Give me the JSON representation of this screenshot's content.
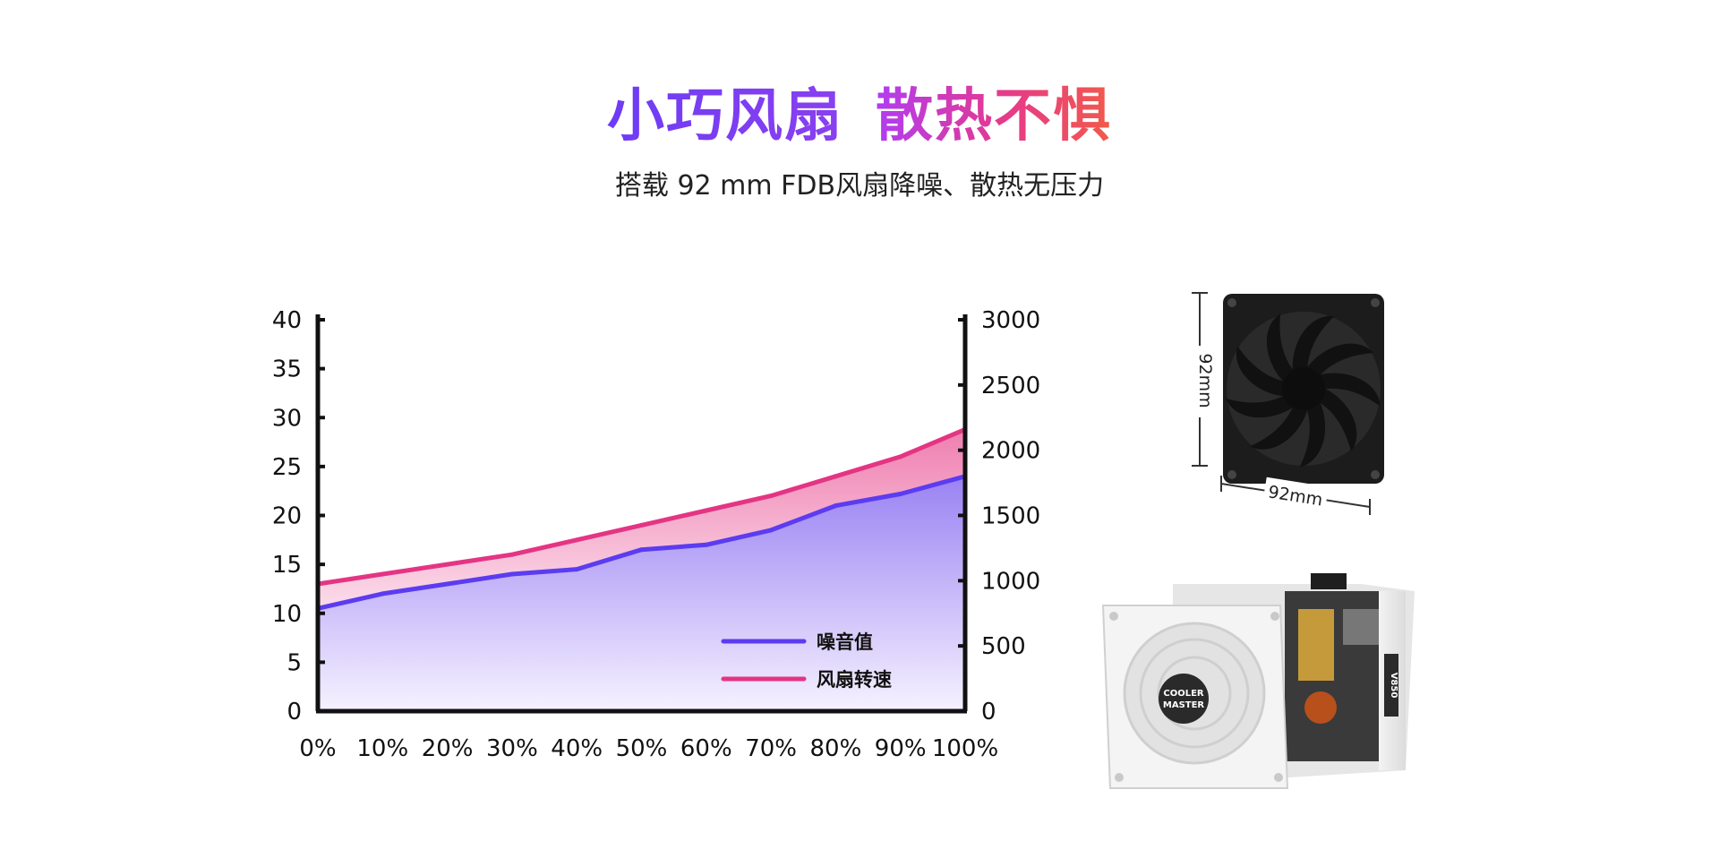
{
  "header": {
    "title_part1": "小巧风扇",
    "title_part2": "散热不惧",
    "subtitle": "搭载 92 mm FDB风扇降噪、散热无压力"
  },
  "colors": {
    "noise": "#5b3cf0",
    "speed": "#e43584",
    "title_purple": "#6a3cf0",
    "title_pink": "#e8337e"
  },
  "chart_data": {
    "type": "area",
    "x": [
      "0%",
      "10%",
      "20%",
      "30%",
      "40%",
      "50%",
      "60%",
      "70%",
      "80%",
      "90%",
      "100%"
    ],
    "y_left_ticks": [
      "0",
      "5",
      "10",
      "15",
      "20",
      "25",
      "30",
      "35",
      "40"
    ],
    "y_right_ticks": [
      "0",
      "500",
      "1000",
      "1500",
      "2000",
      "2500",
      "3000"
    ],
    "ylim_left": [
      0,
      40
    ],
    "ylim_right": [
      0,
      3000
    ],
    "grid": false,
    "legend_position": "bottom-right",
    "series": [
      {
        "name": "噪音值",
        "axis": "left",
        "values": [
          10.5,
          12,
          13,
          14,
          14.5,
          16.5,
          17,
          18.5,
          21,
          22.2,
          24
        ]
      },
      {
        "name": "风扇转速",
        "axis": "left",
        "values": [
          13,
          14,
          15,
          16,
          17.5,
          19,
          20.5,
          22,
          24,
          26,
          28.8
        ]
      }
    ]
  },
  "product": {
    "fan_width_label": "92mm",
    "fan_height_label": "92mm",
    "psu_brand_line1": "COOLER",
    "psu_brand_line2": "MASTER",
    "psu_model": "V850"
  }
}
